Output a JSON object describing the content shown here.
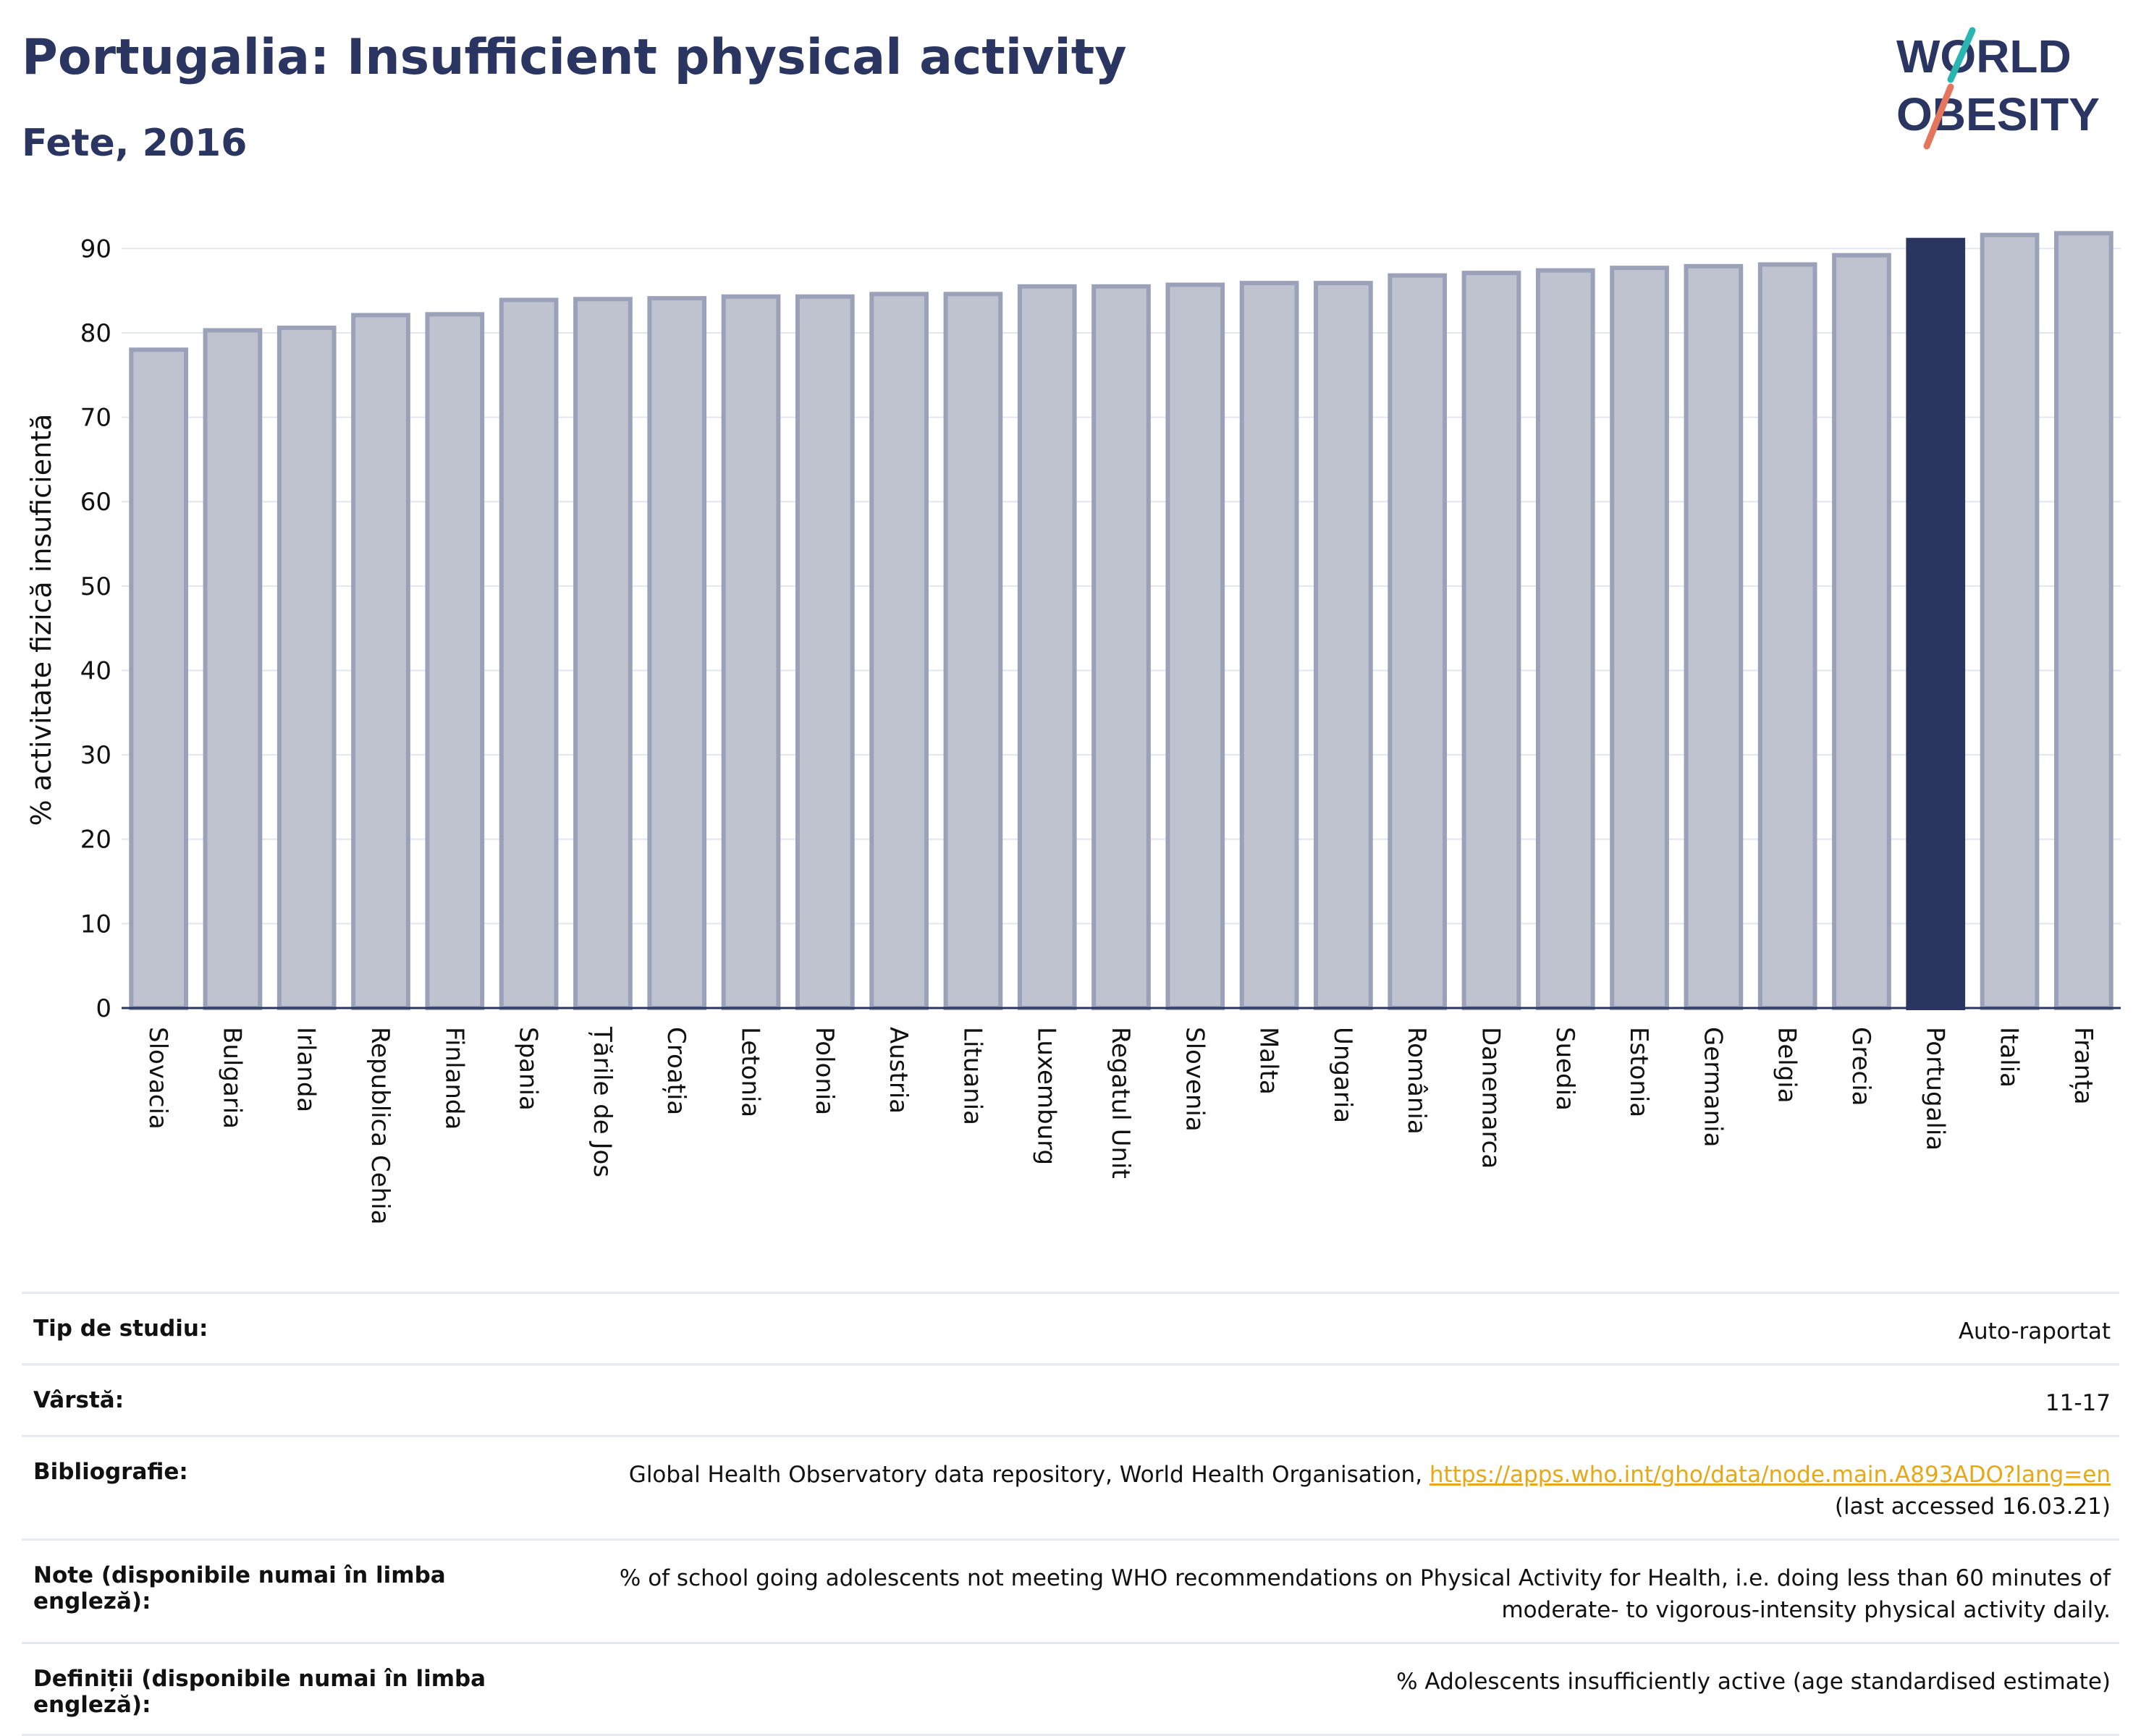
{
  "header": {
    "title": "Portugalia: Insufficient physical activity",
    "subtitle": "Fete, 2016"
  },
  "logo": {
    "line1": "WORLD",
    "line2": "OBESITY"
  },
  "chart_data": {
    "type": "bar",
    "title": "Portugalia: Insufficient physical activity",
    "subtitle": "Fete, 2016",
    "ylabel": "% activitate fizică insuficientă",
    "xlabel": "",
    "ylim": [
      0,
      92
    ],
    "yticks": [
      0,
      10,
      20,
      30,
      40,
      50,
      60,
      70,
      80,
      90
    ],
    "grid": true,
    "highlight": "Portugalia",
    "colors": {
      "bar": "#bfc3d0",
      "bar_edge": "#9aa1b8",
      "highlight": "#2a3561",
      "grid": "#e3e6ee"
    },
    "categories": [
      "Slovacia",
      "Bulgaria",
      "Irlanda",
      "Republica Cehia",
      "Finlanda",
      "Spania",
      "Țările de Jos",
      "Croația",
      "Letonia",
      "Polonia",
      "Austria",
      "Lituania",
      "Luxemburg",
      "Regatul Unit",
      "Slovenia",
      "Malta",
      "Ungaria",
      "România",
      "Danemarca",
      "Suedia",
      "Estonia",
      "Germania",
      "Belgia",
      "Grecia",
      "Portugalia",
      "Italia",
      "Franța"
    ],
    "values": [
      78.0,
      80.3,
      80.6,
      82.1,
      82.2,
      83.9,
      84.0,
      84.1,
      84.3,
      84.3,
      84.6,
      84.6,
      85.5,
      85.5,
      85.7,
      85.9,
      85.9,
      86.8,
      87.1,
      87.4,
      87.7,
      87.9,
      88.1,
      89.2,
      91.0,
      91.6,
      91.8
    ]
  },
  "info": {
    "rows": [
      {
        "label": "Tip de studiu:",
        "value": "Auto-raportat"
      },
      {
        "label": "Vârstă:",
        "value": "11-17"
      },
      {
        "label": "Bibliografie:",
        "value": "Global Health Observatory data repository, World Health Organisation,",
        "link": "https://apps.who.int/gho/data/node.main.A893ADO?lang=en",
        "value2": "(last accessed 16.03.21)"
      },
      {
        "label": "Note (disponibile numai în limba engleză):",
        "value": "% of school going adolescents not meeting WHO recommendations on Physical Activity for Health, i.e. doing less than 60 minutes of",
        "value2": "moderate- to vigorous-intensity physical activity daily."
      },
      {
        "label": "Definiții (disponibile numai în limba engleză):",
        "value": "% Adolescents insufficiently active (age standardised estimate)"
      }
    ]
  }
}
